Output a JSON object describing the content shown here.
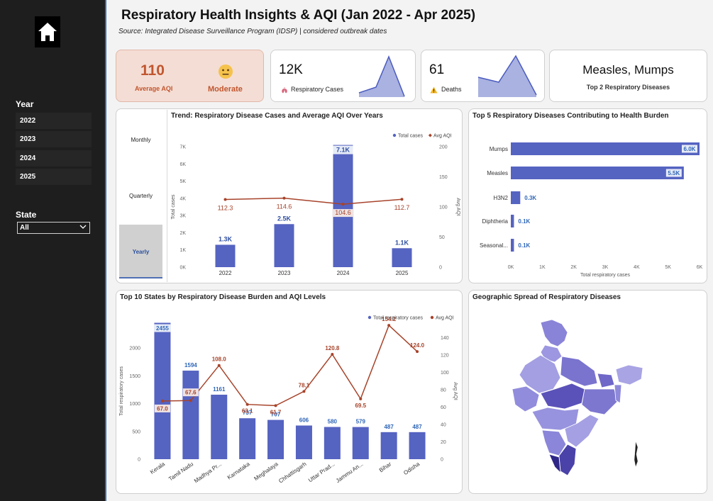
{
  "sidebar": {
    "year_label": "Year",
    "years": [
      "2022",
      "2023",
      "2024",
      "2025"
    ],
    "state_label": "State",
    "state_value": "All"
  },
  "header": {
    "title": "Respiratory Health Insights & AQI (Jan 2022 - Apr 2025)",
    "subtitle": "Source: Integrated Disease Surveillance Program (IDSP) | considered outbreak dates"
  },
  "kpis": {
    "aqi_value": "110",
    "aqi_label": "Average AQI",
    "aqi_status": "Moderate",
    "cases_value": "12K",
    "cases_label": "Respiratory Cases",
    "deaths_value": "61",
    "deaths_label": "Deaths",
    "top_diseases_value": "Measles, Mumps",
    "top_diseases_label": "Top 2 Respiratory Diseases"
  },
  "colors": {
    "bar": "#5563c1",
    "line": "#a7432a",
    "spark_fill": "#a9b2e0",
    "spark_line": "#4b5bbf",
    "aqi_card": "#f4ddd4",
    "aqi_text": "#c1562f"
  },
  "trend": {
    "title": "Trend: Respiratory Disease Cases and Average AQI Over Years",
    "toggles": [
      "Monthly",
      "Quarterly",
      "Yearly"
    ],
    "selected_toggle": "Yearly"
  },
  "map": {
    "title": "Geographic Spread of Respiratory Diseases"
  },
  "chart_data": [
    {
      "id": "trend",
      "type": "bar",
      "title": "Trend: Respiratory Disease Cases and Average AQI Over Years",
      "categories": [
        "2022",
        "2023",
        "2024",
        "2025"
      ],
      "series": [
        {
          "name": "Total cases",
          "values": [
            1300,
            2500,
            7100,
            1100
          ],
          "labels": [
            "1.3K",
            "2.5K",
            "7.1K",
            "1.1K"
          ],
          "axis": "left"
        },
        {
          "name": "Avg AQI",
          "type": "line",
          "values": [
            112.3,
            114.6,
            104.6,
            112.7
          ],
          "labels": [
            "112.3",
            "114.6",
            "104.6",
            "112.7"
          ],
          "axis": "right"
        }
      ],
      "ylabel": "Total cases",
      "y2label": "Avg AQI",
      "ylim": [
        0,
        7000
      ],
      "y2lim": [
        0,
        200
      ],
      "yticks": [
        "0K",
        "1K",
        "2K",
        "3K",
        "4K",
        "5K",
        "6K",
        "7K"
      ],
      "y2ticks": [
        "0",
        "50",
        "100",
        "150",
        "200"
      ],
      "legend": "top-right"
    },
    {
      "id": "top5",
      "type": "bar",
      "orientation": "horizontal",
      "title": "Top 5 Respiratory Diseases Contributing to Health Burden",
      "categories": [
        "Mumps",
        "Measles",
        "H3N2",
        "Diphtheria",
        "Seasonal..."
      ],
      "values": [
        6000,
        5500,
        300,
        100,
        100
      ],
      "labels": [
        "6.0K",
        "5.5K",
        "0.3K",
        "0.1K",
        "0.1K"
      ],
      "xlabel": "Total respiratory cases",
      "xlim": [
        0,
        6000
      ],
      "xticks": [
        "0K",
        "1K",
        "2K",
        "3K",
        "4K",
        "5K",
        "6K"
      ]
    },
    {
      "id": "states",
      "type": "bar",
      "title": "Top 10 States by Respiratory Disease Burden and AQI Levels",
      "categories": [
        "Kerala",
        "Tamil Nadu",
        "Madhya Pr...",
        "Karnataka",
        "Meghalaya",
        "Chhattisgarh",
        "Uttar Prad...",
        "Jammu An...",
        "Bihar",
        "Odisha"
      ],
      "series": [
        {
          "name": "Total respiratory cases",
          "values": [
            2455,
            1594,
            1161,
            737,
            707,
            606,
            580,
            579,
            487,
            487
          ],
          "axis": "left"
        },
        {
          "name": "Avg AQI",
          "type": "line",
          "values": [
            67.0,
            67.6,
            108.0,
            63.1,
            61.7,
            78.1,
            120.8,
            69.5,
            154.2,
            124.0
          ],
          "axis": "right"
        }
      ],
      "bar_labels": [
        "2455",
        "1594",
        "1161",
        "737",
        "707",
        "606",
        "580",
        "579",
        "487",
        "487"
      ],
      "line_labels": [
        "67.0",
        "67.6",
        "108.0",
        "63.1",
        "61.7",
        "78.1",
        "120.8",
        "69.5",
        "154.2",
        "124.0"
      ],
      "ylabel": "Total respiratory cases",
      "y2label": "Avg AQI",
      "ylim": [
        0,
        2500
      ],
      "y2lim": [
        0,
        160
      ],
      "yticks": [
        "0",
        "500",
        "1000",
        "1500",
        "2000"
      ],
      "y2ticks": [
        "0",
        "20",
        "40",
        "60",
        "80",
        "100",
        "120",
        "140"
      ],
      "legend": "top-right"
    }
  ]
}
